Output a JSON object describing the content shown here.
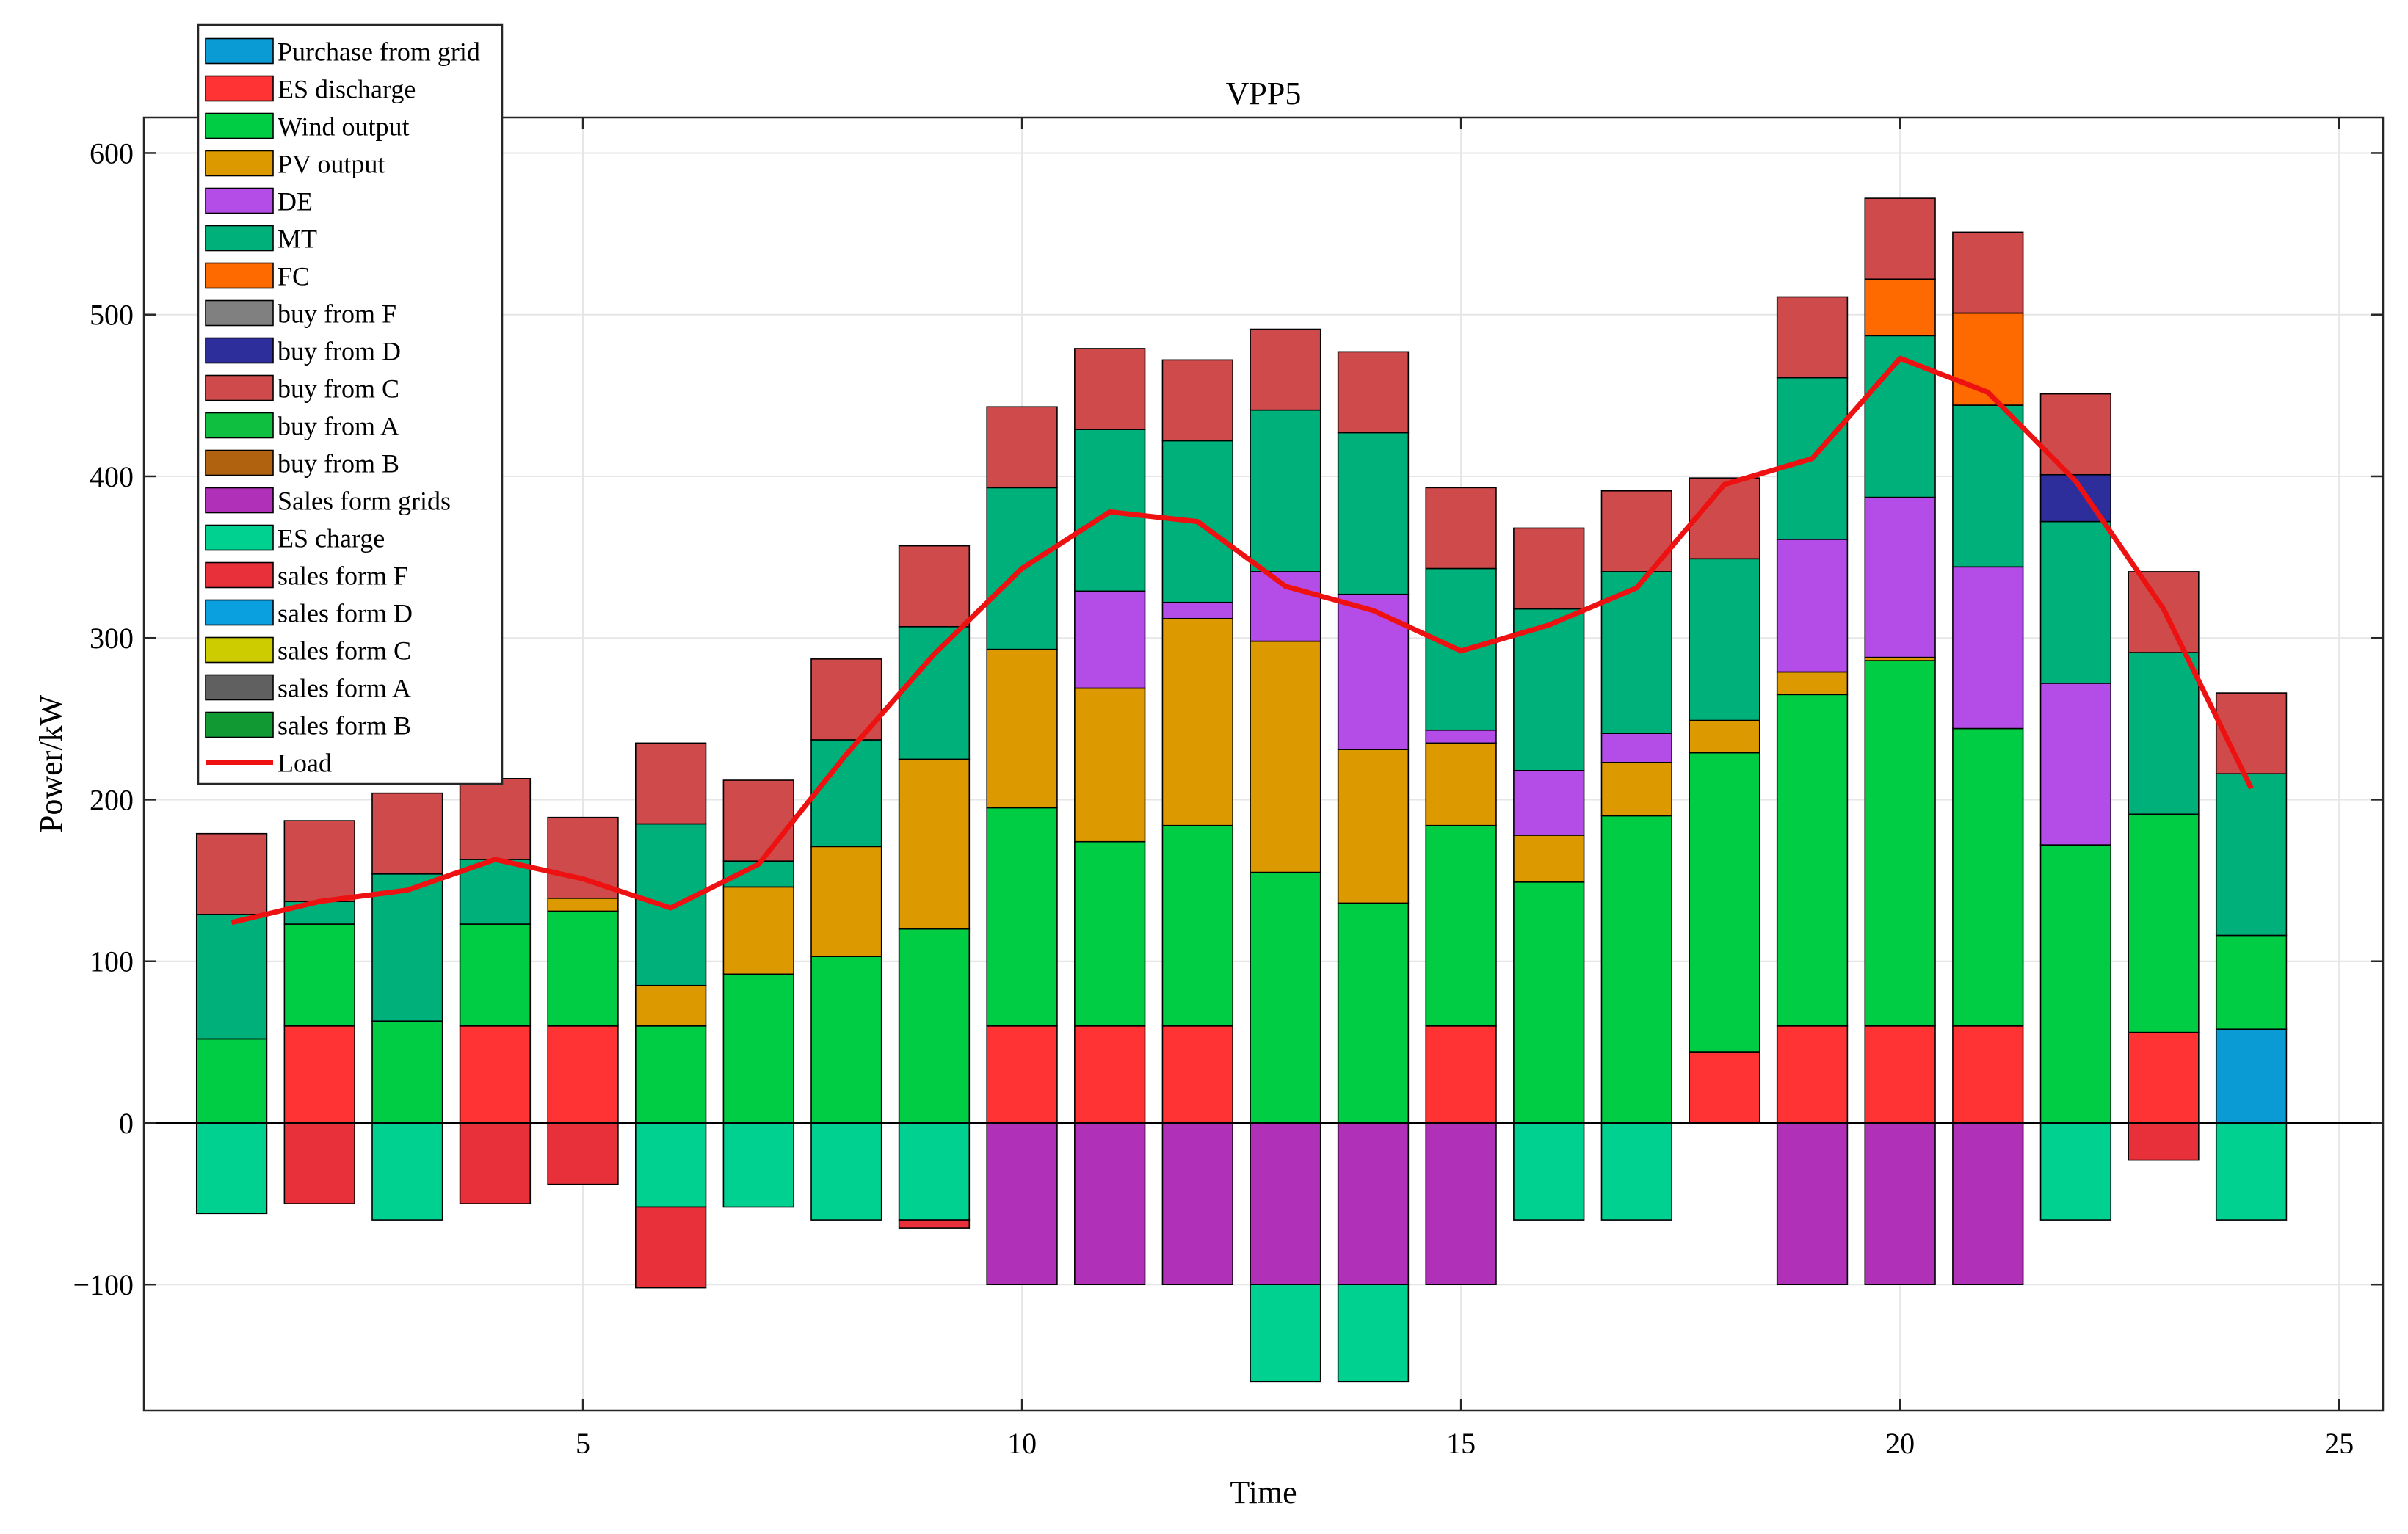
{
  "chart_data": {
    "type": "bar",
    "stacked": true,
    "title": "VPP5",
    "xlabel": "Time",
    "ylabel": "Power/kW",
    "xlim": [
      0,
      25.5
    ],
    "ylim": [
      -178,
      622
    ],
    "xticks": [
      5,
      10,
      15,
      20,
      25
    ],
    "yticks": [
      -100,
      0,
      100,
      200,
      300,
      400,
      500,
      600
    ],
    "xtick_labels": [
      "5",
      "10",
      "15",
      "20",
      "25"
    ],
    "ytick_labels": [
      "−100",
      "0",
      "100",
      "200",
      "300",
      "400",
      "500",
      "600"
    ],
    "grid": true,
    "legend_position": "top-left",
    "categories": [
      1,
      2,
      3,
      4,
      5,
      6,
      7,
      8,
      9,
      10,
      11,
      12,
      13,
      14,
      15,
      16,
      17,
      18,
      19,
      20,
      21,
      22,
      23,
      24
    ],
    "series": [
      {
        "name": "Purchase from grid",
        "color": "#0a9bd5",
        "values": [
          0,
          0,
          0,
          0,
          0,
          0,
          0,
          0,
          0,
          0,
          0,
          0,
          0,
          0,
          0,
          0,
          0,
          0,
          0,
          0,
          0,
          0,
          0,
          58
        ]
      },
      {
        "name": "ES discharge",
        "color": "#ff3333",
        "values": [
          0,
          60,
          0,
          60,
          60,
          0,
          0,
          0,
          0,
          60,
          60,
          60,
          0,
          0,
          60,
          0,
          0,
          44,
          60,
          60,
          60,
          0,
          56,
          0
        ]
      },
      {
        "name": "Wind output",
        "color": "#00cc44",
        "values": [
          52,
          63,
          63,
          63,
          71,
          60,
          92,
          103,
          120,
          135,
          114,
          124,
          155,
          136,
          124,
          149,
          190,
          185,
          205,
          226,
          184,
          172,
          135,
          58
        ]
      },
      {
        "name": "PV output",
        "color": "#dd9900",
        "values": [
          0,
          0,
          0,
          0,
          8,
          25,
          54,
          68,
          105,
          98,
          95,
          128,
          143,
          95,
          51,
          29,
          33,
          20,
          14,
          2,
          0,
          0,
          0,
          0
        ]
      },
      {
        "name": "DE",
        "color": "#b44ce8",
        "values": [
          0,
          0,
          0,
          0,
          0,
          0,
          0,
          0,
          0,
          0,
          60,
          10,
          43,
          96,
          8,
          40,
          18,
          0,
          82,
          99,
          100,
          100,
          0,
          0
        ]
      },
      {
        "name": "MT",
        "color": "#00b07a",
        "values": [
          77,
          14,
          91,
          40,
          0,
          100,
          16,
          66,
          82,
          100,
          100,
          100,
          100,
          100,
          100,
          100,
          100,
          100,
          100,
          100,
          100,
          100,
          100,
          100
        ]
      },
      {
        "name": "FC",
        "color": "#ff6a00",
        "values": [
          0,
          0,
          0,
          0,
          0,
          0,
          0,
          0,
          0,
          0,
          0,
          0,
          0,
          0,
          0,
          0,
          0,
          0,
          0,
          35,
          57,
          0,
          0,
          0
        ]
      },
      {
        "name": "buy from F",
        "color": "#808080",
        "values": [
          0,
          0,
          0,
          0,
          0,
          0,
          0,
          0,
          0,
          0,
          0,
          0,
          0,
          0,
          0,
          0,
          0,
          0,
          0,
          0,
          0,
          0,
          0,
          0
        ]
      },
      {
        "name": "buy from D",
        "color": "#2d2d9c",
        "values": [
          0,
          0,
          0,
          0,
          0,
          0,
          0,
          0,
          0,
          0,
          0,
          0,
          0,
          0,
          0,
          0,
          0,
          0,
          0,
          0,
          0,
          29,
          0,
          0
        ]
      },
      {
        "name": "buy from C",
        "color": "#cf4b4b",
        "values": [
          50,
          50,
          50,
          50,
          50,
          50,
          50,
          50,
          50,
          50,
          50,
          50,
          50,
          50,
          50,
          50,
          50,
          50,
          50,
          50,
          50,
          50,
          50,
          50
        ]
      },
      {
        "name": "buy from A",
        "color": "#0fbf3f",
        "values": [
          0,
          0,
          0,
          0,
          0,
          0,
          0,
          0,
          0,
          0,
          0,
          0,
          0,
          0,
          0,
          0,
          0,
          0,
          0,
          0,
          0,
          0,
          0,
          0
        ]
      },
      {
        "name": "buy from B",
        "color": "#b0620f",
        "values": [
          0,
          0,
          0,
          0,
          0,
          0,
          0,
          0,
          0,
          0,
          0,
          0,
          0,
          0,
          0,
          0,
          0,
          0,
          0,
          0,
          0,
          0,
          0,
          0
        ]
      },
      {
        "name": "Sales form grids",
        "color": "#b030b8",
        "values": [
          0,
          0,
          0,
          0,
          0,
          0,
          0,
          0,
          0,
          -100,
          -100,
          -100,
          -100,
          -100,
          -100,
          0,
          0,
          0,
          -100,
          -100,
          -100,
          0,
          0,
          0
        ]
      },
      {
        "name": "ES charge",
        "color": "#00d090",
        "values": [
          -56,
          0,
          -60,
          0,
          0,
          -52,
          -52,
          -60,
          -60,
          0,
          0,
          0,
          -60,
          -60,
          0,
          -60,
          -60,
          0,
          0,
          0,
          0,
          -60,
          0,
          -60
        ]
      },
      {
        "name": "sales form F",
        "color": "#e8303a",
        "values": [
          0,
          -50,
          0,
          -50,
          -38,
          -50,
          0,
          0,
          -5,
          0,
          0,
          0,
          0,
          0,
          0,
          0,
          0,
          0,
          0,
          0,
          0,
          0,
          -23,
          0
        ]
      },
      {
        "name": "sales form D",
        "color": "#0aa0e0",
        "values": [
          0,
          0,
          0,
          0,
          0,
          0,
          0,
          0,
          0,
          0,
          0,
          0,
          0,
          0,
          0,
          0,
          0,
          0,
          0,
          0,
          0,
          0,
          0,
          0
        ]
      },
      {
        "name": "sales form C",
        "color": "#cccc00",
        "values": [
          0,
          0,
          0,
          0,
          0,
          0,
          0,
          0,
          0,
          0,
          0,
          0,
          0,
          0,
          0,
          0,
          0,
          0,
          0,
          0,
          0,
          0,
          0,
          0
        ]
      },
      {
        "name": "sales form A",
        "color": "#606060",
        "values": [
          0,
          0,
          0,
          0,
          0,
          0,
          0,
          0,
          0,
          0,
          0,
          0,
          0,
          0,
          0,
          0,
          0,
          0,
          0,
          0,
          0,
          0,
          0,
          0
        ]
      },
      {
        "name": "sales form B",
        "color": "#119933",
        "values": [
          0,
          0,
          0,
          0,
          0,
          0,
          0,
          0,
          0,
          0,
          0,
          0,
          0,
          0,
          0,
          0,
          0,
          0,
          0,
          0,
          0,
          0,
          0,
          0
        ]
      }
    ],
    "line_series": {
      "name": "Load",
      "color": "#ee1111",
      "x": [
        1,
        2,
        3,
        4,
        5,
        6,
        7,
        8,
        9,
        10,
        11,
        12,
        13,
        14,
        15,
        16,
        17,
        18,
        19,
        20,
        21,
        22,
        23,
        24
      ],
      "values": [
        124,
        137,
        144,
        163,
        151,
        133,
        160,
        228,
        290,
        343,
        378,
        372,
        332,
        317,
        292,
        308,
        331,
        395,
        411,
        473,
        452,
        397,
        318,
        207
      ]
    }
  }
}
